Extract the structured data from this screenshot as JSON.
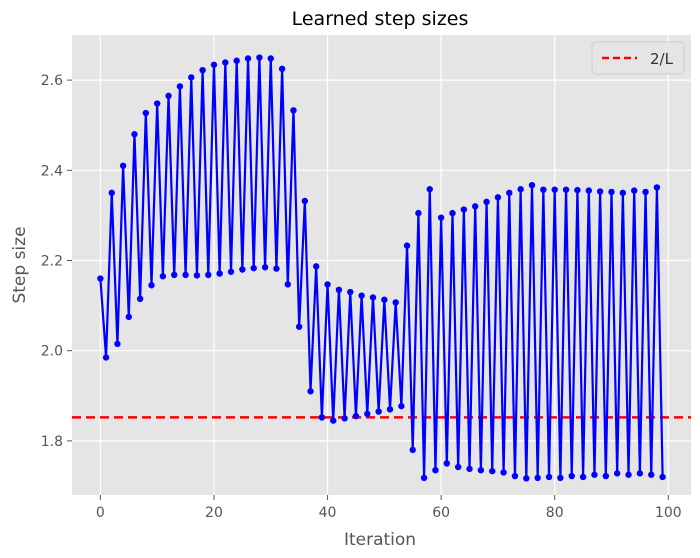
{
  "chart_data": {
    "type": "line",
    "title": "Learned step sizes",
    "xlabel": "Iteration",
    "ylabel": "Step size",
    "xlim": [
      -5,
      104
    ],
    "ylim": [
      1.68,
      2.7
    ],
    "xticks": [
      0,
      20,
      40,
      60,
      80,
      100
    ],
    "yticks": [
      1.8,
      2.0,
      2.2,
      2.4,
      2.6
    ],
    "ytick_labels": [
      "1.8",
      "2.0",
      "2.2",
      "2.4",
      "2.6"
    ],
    "grid": true,
    "legend_position": "top-right",
    "series": [
      {
        "style": "line-with-markers",
        "color": "#0000ff",
        "x": [
          0,
          1,
          2,
          3,
          4,
          5,
          6,
          7,
          8,
          9,
          10,
          11,
          12,
          13,
          14,
          15,
          16,
          17,
          18,
          19,
          20,
          21,
          22,
          23,
          24,
          25,
          26,
          27,
          28,
          29,
          30,
          31,
          32,
          33,
          34,
          35,
          36,
          37,
          38,
          39,
          40,
          41,
          42,
          43,
          44,
          45,
          46,
          47,
          48,
          49,
          50,
          51,
          52,
          53,
          54,
          55,
          56,
          57,
          58,
          59,
          60,
          61,
          62,
          63,
          64,
          65,
          66,
          67,
          68,
          69,
          70,
          71,
          72,
          73,
          74,
          75,
          76,
          77,
          78,
          79,
          80,
          81,
          82,
          83,
          84,
          85,
          86,
          87,
          88,
          89,
          90,
          91,
          92,
          93,
          94,
          95,
          96,
          97,
          98,
          99
        ],
        "y": [
          2.16,
          1.985,
          2.35,
          2.015,
          2.41,
          2.075,
          2.48,
          2.115,
          2.527,
          2.145,
          2.548,
          2.165,
          2.565,
          2.168,
          2.586,
          2.168,
          2.606,
          2.167,
          2.622,
          2.168,
          2.634,
          2.171,
          2.639,
          2.175,
          2.643,
          2.18,
          2.648,
          2.183,
          2.65,
          2.185,
          2.648,
          2.182,
          2.625,
          2.147,
          2.533,
          2.053,
          2.332,
          1.91,
          2.187,
          1.852,
          2.147,
          1.845,
          2.135,
          1.85,
          2.13,
          1.855,
          2.122,
          1.86,
          2.118,
          1.865,
          2.113,
          1.87,
          2.107,
          1.877,
          2.233,
          1.78,
          2.305,
          1.718,
          2.358,
          1.735,
          2.295,
          1.75,
          2.305,
          1.742,
          2.313,
          1.738,
          2.32,
          1.735,
          2.33,
          1.733,
          2.34,
          1.73,
          2.35,
          1.722,
          2.358,
          1.717,
          2.367,
          1.718,
          2.357,
          1.72,
          2.357,
          1.718,
          2.357,
          1.722,
          2.356,
          1.72,
          2.355,
          1.725,
          2.353,
          1.722,
          2.352,
          1.728,
          2.35,
          1.725,
          2.355,
          1.728,
          2.352,
          1.725,
          2.362,
          1.72
        ]
      },
      {
        "name": "2/L",
        "style": "dashed-hline",
        "color": "#ff0000",
        "y": 1.852
      }
    ]
  }
}
